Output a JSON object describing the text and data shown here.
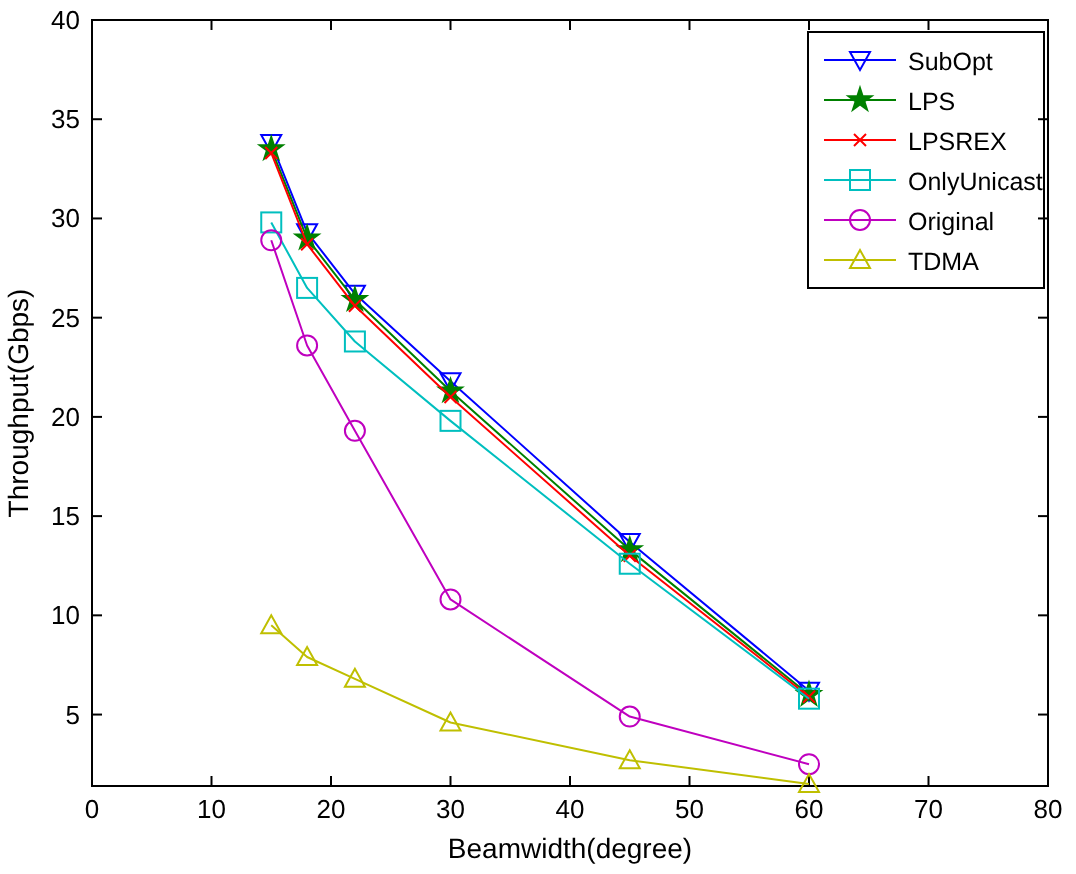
{
  "chart_data": {
    "type": "line",
    "xlabel": "Beamwidth(degree)",
    "ylabel": "Throughput(Gbps)",
    "x": [
      15,
      18,
      22,
      30,
      45,
      60
    ],
    "xlim": [
      0,
      80
    ],
    "xticks": [
      0,
      10,
      20,
      30,
      40,
      50,
      60,
      70,
      80
    ],
    "ylim": [
      1.4,
      40
    ],
    "yticks": [
      5,
      10,
      15,
      20,
      25,
      30,
      35,
      40
    ],
    "grid": false,
    "legend": "top right",
    "line_style": "solid",
    "series": [
      {
        "name": "SubOpt",
        "color": "#0000ff",
        "marker": "triangle-down",
        "values": [
          33.8,
          29.3,
          26.2,
          21.8,
          13.7,
          6.2
        ]
      },
      {
        "name": "LPS",
        "color": "#008000",
        "marker": "star",
        "values": [
          33.5,
          29.0,
          25.9,
          21.3,
          13.3,
          6.0
        ]
      },
      {
        "name": "LPSREX",
        "color": "#ff0000",
        "marker": "cross",
        "values": [
          33.3,
          28.7,
          25.6,
          21.0,
          13.0,
          5.9
        ]
      },
      {
        "name": "OnlyUnicast",
        "color": "#00bfbf",
        "marker": "square",
        "values": [
          29.8,
          26.5,
          23.8,
          19.8,
          12.6,
          5.8
        ]
      },
      {
        "name": "Original",
        "color": "#bf00bf",
        "marker": "circle",
        "values": [
          28.9,
          23.6,
          19.3,
          10.8,
          4.9,
          2.5
        ]
      },
      {
        "name": "TDMA",
        "color": "#bfbf00",
        "marker": "triangle",
        "values": [
          9.5,
          7.9,
          6.8,
          4.6,
          2.7,
          1.5
        ]
      }
    ]
  }
}
